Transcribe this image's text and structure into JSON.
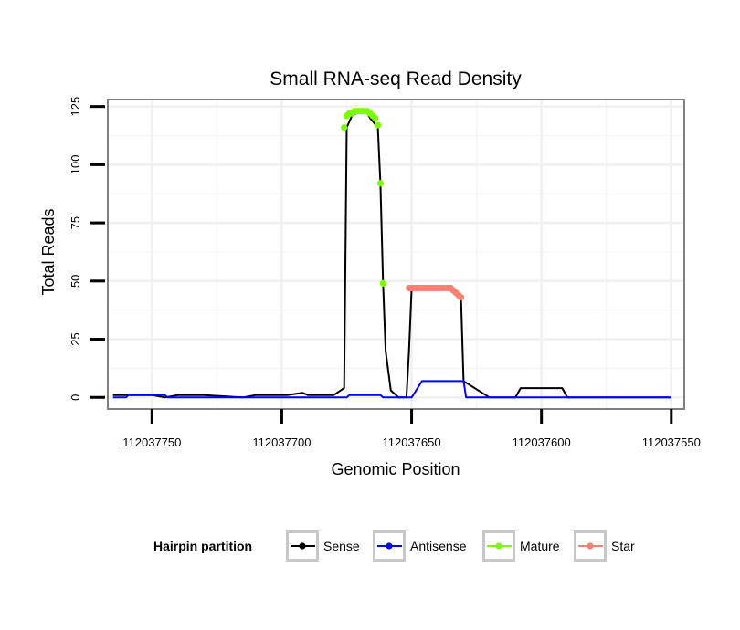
{
  "chart_data": {
    "type": "line",
    "title": "Small RNA-seq Read Density",
    "xlabel": "Genomic Position",
    "ylabel": "Total Reads",
    "x_reversed": true,
    "xlim": [
      112037767,
      112037545
    ],
    "ylim": [
      -5,
      128
    ],
    "x_ticks": [
      112037750,
      112037700,
      112037650,
      112037600,
      112037550
    ],
    "x_tick_labels": [
      "112037750",
      "112037700",
      "112037650",
      "112037600",
      "112037550"
    ],
    "y_ticks": [
      0,
      25,
      50,
      75,
      100,
      125
    ],
    "y_tick_labels": [
      "0",
      "25",
      "50",
      "75",
      "100",
      "125"
    ],
    "grid": true,
    "legend": {
      "title": "Hairpin partition",
      "position": "bottom",
      "entries": [
        {
          "name": "Sense",
          "color": "#000000"
        },
        {
          "name": "Antisense",
          "color": "#0000ff"
        },
        {
          "name": "Mature",
          "color": "#7cfc00"
        },
        {
          "name": "Star",
          "color": "#fa8072"
        }
      ]
    },
    "series": [
      {
        "name": "Sense",
        "kind": "line",
        "color": "#000000",
        "x": [
          112037765,
          112037750,
          112037745,
          112037740,
          112037730,
          112037715,
          112037710,
          112037698,
          112037692,
          112037690,
          112037685,
          112037680,
          112037676,
          112037675,
          112037673,
          112037670,
          112037668,
          112037667,
          112037666,
          112037663,
          112037662,
          112037661,
          112037660,
          112037658,
          112037655,
          112037652,
          112037651,
          112037650,
          112037640,
          112037635,
          112037632,
          112037631,
          112037630,
          112037620,
          112037610,
          112037608,
          112037592,
          112037590,
          112037550
        ],
        "y": [
          1,
          1,
          0,
          1,
          1,
          0,
          1,
          1,
          2,
          1,
          1,
          1,
          4,
          116,
          121,
          123,
          123,
          122,
          120,
          116,
          92,
          49,
          20,
          3,
          0,
          0,
          20,
          47,
          47,
          47,
          45,
          43,
          7,
          0,
          0,
          4,
          4,
          0,
          0
        ]
      },
      {
        "name": "Antisense",
        "kind": "line",
        "color": "#0000ff",
        "x": [
          112037765,
          112037760,
          112037759,
          112037745,
          112037744,
          112037675,
          112037674,
          112037662,
          112037661,
          112037652,
          112037650,
          112037646,
          112037630,
          112037629,
          112037550
        ],
        "y": [
          0,
          0,
          1,
          1,
          0,
          0,
          1,
          1,
          0,
          0,
          0,
          7,
          7,
          0,
          0
        ]
      },
      {
        "name": "Mature",
        "kind": "points",
        "color": "#7cfc00",
        "x": [
          112037676,
          112037675,
          112037674,
          112037673,
          112037672,
          112037671,
          112037670,
          112037669,
          112037668,
          112037667,
          112037666,
          112037665,
          112037664,
          112037663,
          112037662,
          112037661
        ],
        "y": [
          116,
          121,
          122,
          122,
          123,
          123,
          123,
          123,
          123,
          123,
          122,
          121,
          120,
          117,
          92,
          49
        ]
      },
      {
        "name": "Star",
        "kind": "points",
        "color": "#fa8072",
        "x": [
          112037651,
          112037650,
          112037649,
          112037648,
          112037647,
          112037646,
          112037645,
          112037644,
          112037643,
          112037642,
          112037641,
          112037640,
          112037639,
          112037638,
          112037637,
          112037636,
          112037635,
          112037634,
          112037633,
          112037632,
          112037631
        ],
        "y": [
          47,
          47,
          47,
          47,
          47,
          47,
          47,
          47,
          47,
          47,
          47,
          47,
          47,
          47,
          47,
          47,
          47,
          46,
          45,
          44,
          43
        ]
      }
    ]
  }
}
